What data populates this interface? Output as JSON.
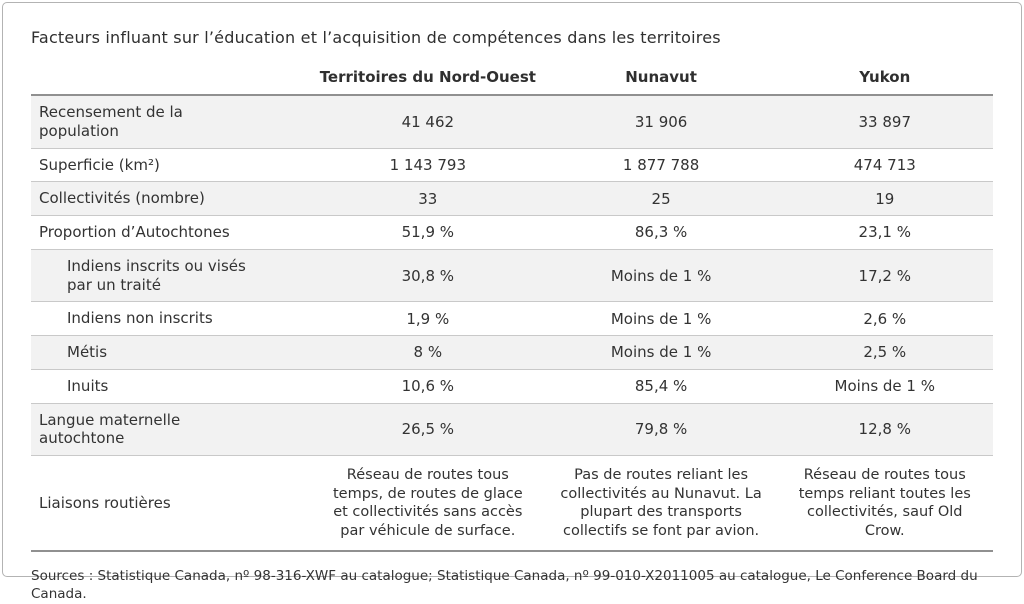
{
  "title": "Facteurs influant sur l’éducation et l’acquisition de compétences dans les territoires",
  "table": {
    "columns": [
      "",
      "Territoires du Nord-Ouest",
      "Nunavut",
      "Yukon"
    ],
    "rows": [
      {
        "label": "Recensement de la population",
        "sub": false,
        "values": [
          "41 462",
          "31 906",
          "33 897"
        ]
      },
      {
        "label": "Superficie (km²)",
        "sub": false,
        "values": [
          "1 143 793",
          "1 877 788",
          "474 713"
        ]
      },
      {
        "label": "Collectivités (nombre)",
        "sub": false,
        "values": [
          "33",
          "25",
          "19"
        ]
      },
      {
        "label": "Proportion d’Autochtones",
        "sub": false,
        "values": [
          "51,9 %",
          "86,3 %",
          "23,1 %"
        ]
      },
      {
        "label": "Indiens inscrits ou visés par un traité",
        "sub": true,
        "values": [
          "30,8 %",
          "Moins de 1 %",
          "17,2 %"
        ]
      },
      {
        "label": "Indiens non inscrits",
        "sub": true,
        "values": [
          "1,9 %",
          "Moins de 1 %",
          "2,6 %"
        ]
      },
      {
        "label": "Métis",
        "sub": true,
        "values": [
          "8 %",
          "Moins de 1 %",
          "2,5 %"
        ]
      },
      {
        "label": "Inuits",
        "sub": true,
        "values": [
          "10,6 %",
          "85,4 %",
          "Moins de 1 %"
        ]
      },
      {
        "label": "Langue maternelle autochtone",
        "sub": false,
        "values": [
          "26,5 %",
          "79,8 %",
          "12,8 %"
        ]
      },
      {
        "label": "Liaisons routières",
        "sub": false,
        "values": [
          "Réseau de routes tous temps, de routes de glace et collectivités sans accès par véhicule de surface.",
          "Pas de routes reliant les collectivités au Nunavut. La plupart des transports collectifs se font par avion.",
          "Réseau de routes tous temps reliant toutes les collectivités, sauf Old Crow."
        ]
      }
    ]
  },
  "sources": "Sources : Statistique Canada, nº 98-316-XWF au catalogue; Statistique Canada, nº 99-010-X2011005 au catalogue, Le Conference Board du Canada.",
  "colors": {
    "row_shade": "#f2f2f2",
    "separator": "#c9c9c9",
    "rule_dark": "#909090",
    "text": "#333333",
    "outer_border": "#b3b3b3"
  }
}
